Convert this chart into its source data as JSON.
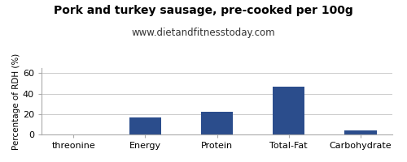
{
  "title": "Pork and turkey sausage, pre-cooked per 100g",
  "subtitle": "www.dietandfitnesstoday.com",
  "categories": [
    "threonine",
    "Energy",
    "Protein",
    "Total-Fat",
    "Carbohydrate"
  ],
  "values": [
    0,
    17,
    22,
    47,
    4
  ],
  "bar_color": "#2b4d8c",
  "ylabel": "Percentage of RDH (%)",
  "ylim": [
    0,
    65
  ],
  "yticks": [
    0,
    20,
    40,
    60
  ],
  "background_color": "#ffffff",
  "plot_bg_color": "#ffffff",
  "title_fontsize": 10,
  "subtitle_fontsize": 8.5,
  "ylabel_fontsize": 7.5,
  "tick_fontsize": 8,
  "grid_color": "#cccccc"
}
